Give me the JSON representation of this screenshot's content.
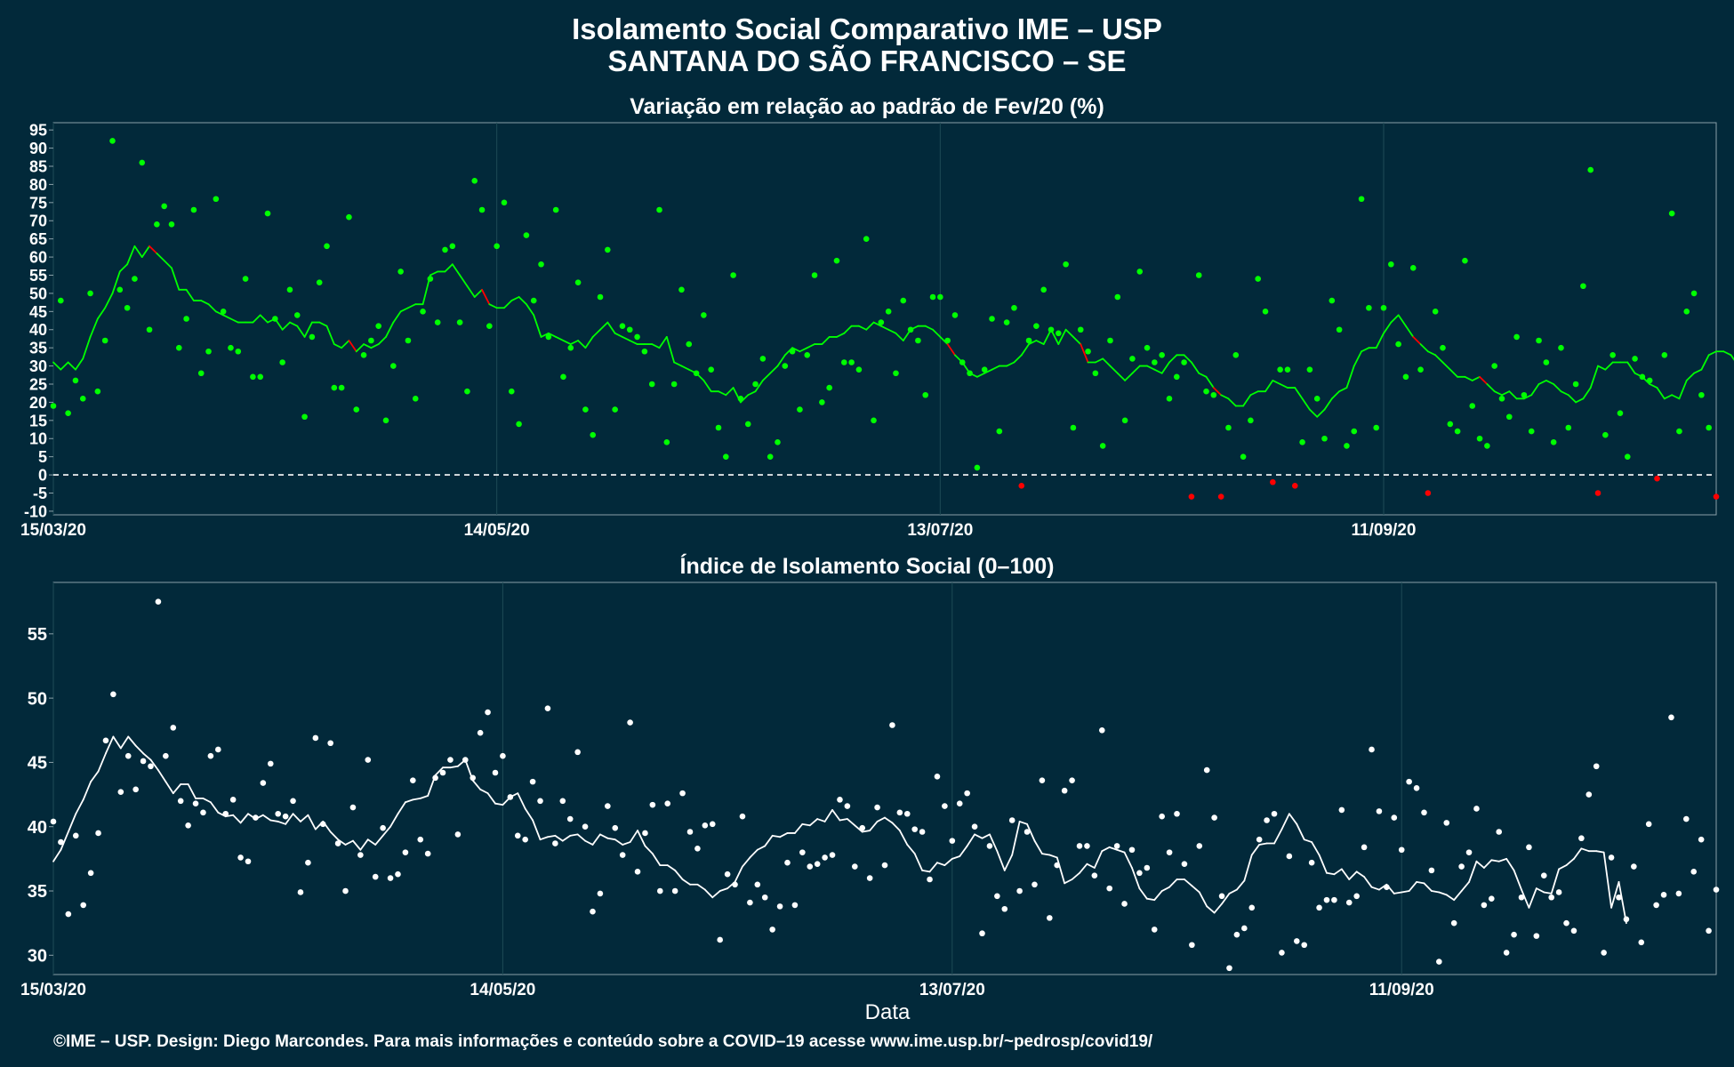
{
  "title_line1": "Isolamento Social Comparativo IME – USP",
  "title_line2": "SANTANA DO SÃO FRANCISCO – SE",
  "footer": "©IME – USP. Design: Diego Marcondes. Para mais informações e conteúdo sobre a COVID–19 acesse www.ime.usp.br/~pedrosp/covid19/",
  "xlabel": "Data",
  "colors": {
    "background": "#02293a",
    "positive": "#00ff00",
    "negative": "#ff0000",
    "index": "#ffffff",
    "grid": "#1d4a55"
  },
  "chart_data": [
    {
      "type": "scatter",
      "title": "Variação em relação ao padrão de Fev/20 (%)",
      "xlabel": "",
      "ylabel": "",
      "x_range": [
        "15/03/20",
        "24/10/20"
      ],
      "ylim": [
        -11,
        97
      ],
      "yticks": [
        -10,
        -5,
        0,
        5,
        10,
        15,
        20,
        25,
        30,
        35,
        40,
        45,
        50,
        55,
        60,
        65,
        70,
        75,
        80,
        85,
        90,
        95
      ],
      "xticks": [
        "15/03/20",
        "14/05/20",
        "13/07/20",
        "11/09/20"
      ],
      "reference_line": 0,
      "series": [
        {
          "values": [
            19,
            48,
            17,
            26,
            21,
            50,
            23,
            37,
            92,
            51,
            46,
            54,
            86,
            40,
            69,
            74,
            69,
            35,
            43,
            73,
            28,
            34,
            76,
            45,
            35,
            34,
            54,
            27,
            27,
            72,
            43,
            31,
            51,
            44,
            16,
            38,
            53,
            63,
            24,
            24,
            71,
            18,
            33,
            37,
            41,
            15,
            30,
            56,
            37,
            21,
            45,
            54,
            42,
            62,
            63,
            42,
            23,
            81,
            73,
            41,
            63,
            75,
            23,
            14,
            66,
            48,
            58,
            38,
            73,
            27,
            35,
            53,
            18,
            11,
            49,
            62,
            18,
            41,
            40,
            38,
            34,
            25,
            73,
            9,
            25,
            51,
            36,
            28,
            44,
            29,
            13,
            5,
            55,
            21,
            14,
            25,
            32,
            5,
            9,
            30,
            34,
            18,
            33,
            55,
            20,
            24,
            59,
            31,
            31,
            29,
            65,
            15,
            42,
            45,
            28,
            48,
            40,
            37,
            22,
            49,
            49,
            37,
            44,
            31,
            28,
            2,
            29,
            43,
            12,
            42,
            46,
            -3,
            37,
            41,
            51,
            40,
            39,
            58,
            13,
            40,
            34,
            28,
            8,
            37,
            49,
            15,
            32,
            56,
            35,
            31,
            33,
            21,
            27,
            31,
            -6,
            55,
            23,
            22,
            -6,
            13,
            33,
            5,
            15,
            54,
            45,
            -2,
            29,
            29,
            -3,
            9,
            29,
            21,
            10,
            48,
            40,
            8,
            12,
            76,
            46,
            13,
            46,
            58,
            36,
            27,
            57,
            29,
            -5,
            45,
            35,
            14,
            12,
            59,
            19,
            10,
            8,
            30,
            21,
            16,
            38,
            22,
            12,
            37,
            31,
            9,
            35,
            13,
            25,
            52,
            84,
            -5,
            11,
            33,
            17,
            5,
            32,
            27,
            26,
            -1,
            33,
            72,
            12,
            45,
            50,
            22,
            13,
            -6
          ]
        },
        {
          "values": [
            31,
            29,
            31,
            29,
            32,
            38,
            43,
            46,
            50,
            56,
            58,
            63,
            60,
            63,
            61,
            59,
            57,
            51,
            51,
            48,
            48,
            47,
            45,
            44,
            43,
            42,
            42,
            42,
            44,
            42,
            43,
            40,
            42,
            41,
            38,
            42,
            42,
            41,
            36,
            35,
            37,
            34,
            36,
            35,
            36,
            38,
            42,
            45,
            46,
            47,
            47,
            55,
            56,
            56,
            58,
            55,
            52,
            49,
            51,
            47,
            46,
            46,
            48,
            49,
            47,
            44,
            38,
            39,
            38,
            37,
            36,
            37,
            35,
            38,
            40,
            42,
            39,
            38,
            37,
            36,
            36,
            36,
            35,
            38,
            31,
            30,
            29,
            28,
            26,
            23,
            23,
            22,
            24,
            20,
            22,
            23,
            26,
            28,
            30,
            33,
            35,
            34,
            35,
            36,
            36,
            38,
            38,
            39,
            41,
            41,
            40,
            42,
            41,
            40,
            39,
            37,
            40,
            41,
            41,
            40,
            38,
            36,
            33,
            31,
            28,
            27,
            28,
            29,
            30,
            30,
            31,
            33,
            36,
            37,
            36,
            40,
            36,
            40,
            38,
            36,
            31,
            31,
            32,
            30,
            28,
            26,
            28,
            30,
            30,
            29,
            28,
            31,
            33,
            33,
            31,
            28,
            27,
            24,
            22,
            21,
            19,
            19,
            22,
            23,
            23,
            26,
            25,
            24,
            24,
            21,
            18,
            16,
            18,
            21,
            23,
            24,
            30,
            34,
            35,
            35,
            39,
            42,
            44,
            41,
            38,
            36,
            34,
            33,
            31,
            29,
            27,
            27,
            26,
            27,
            25,
            23,
            22,
            23,
            21,
            21,
            22,
            25,
            26,
            25,
            23,
            22,
            20,
            21,
            24,
            30,
            29,
            31,
            31,
            31,
            28,
            27,
            25,
            24,
            21,
            22,
            21,
            26,
            28,
            29,
            33,
            34,
            34,
            33,
            30
          ]
        }
      ]
    },
    {
      "type": "scatter",
      "title": "Índice de Isolamento Social (0–100)",
      "xlabel": "Data",
      "ylabel": "",
      "x_range": [
        "15/03/20",
        "24/10/20"
      ],
      "ylim": [
        28.5,
        59
      ],
      "yticks": [
        30,
        35,
        40,
        45,
        50,
        55
      ],
      "xticks": [
        "15/03/20",
        "14/05/20",
        "13/07/20",
        "11/09/20"
      ],
      "series": [
        {
          "values": [
            40.4,
            38.8,
            33.2,
            39.3,
            33.9,
            36.4,
            39.5,
            46.7,
            50.3,
            42.7,
            45.5,
            42.9,
            45.1,
            44.7,
            57.5,
            45.5,
            47.7,
            42.0,
            40.1,
            41.8,
            41.1,
            45.5,
            46.0,
            41.0,
            42.1,
            37.6,
            37.3,
            40.7,
            43.4,
            44.9,
            41.0,
            40.8,
            42.0,
            34.9,
            37.2,
            46.9,
            40.2,
            46.5,
            38.7,
            35.0,
            41.5,
            37.8,
            45.2,
            36.1,
            39.9,
            36.0,
            36.3,
            38.0,
            43.6,
            39.0,
            37.9,
            43.8,
            44.2,
            45.2,
            39.4,
            45.2,
            43.8,
            47.3,
            48.9,
            44.2,
            45.5,
            42.3,
            39.3,
            39.0,
            43.5,
            42.0,
            49.2,
            38.7,
            42.0,
            40.6,
            45.8,
            40.0,
            33.4,
            34.8,
            41.6,
            39.9,
            37.8,
            48.1,
            36.5,
            39.5,
            41.7,
            35.0,
            41.8,
            35.0,
            42.6,
            39.6,
            38.3,
            40.1,
            40.2,
            31.2,
            36.3,
            35.5,
            40.8,
            34.1,
            35.5,
            34.5,
            32.0,
            33.8,
            37.2,
            33.9,
            38.0,
            36.9,
            37.1,
            37.6,
            37.8,
            42.1,
            41.6,
            36.9,
            39.9,
            36.0,
            41.5,
            37.0,
            47.9,
            41.1,
            41.0,
            39.8,
            39.6,
            35.9,
            43.9,
            41.6,
            38.9,
            41.8,
            42.6,
            40.0,
            31.7,
            38.5,
            34.6,
            33.6,
            40.5,
            35.0,
            39.6,
            35.5,
            43.6,
            32.9,
            37.0,
            42.8,
            43.6,
            38.5,
            38.5,
            36.2,
            47.5,
            35.2,
            38.5,
            34.0,
            38.2,
            36.4,
            36.8,
            32.0,
            40.8,
            38.0,
            41.0,
            37.1,
            30.8,
            38.5,
            44.4,
            40.7,
            34.6,
            29.0,
            31.6,
            32.1,
            33.7,
            39.0,
            40.5,
            41.0,
            30.2,
            37.7,
            31.1,
            30.8,
            37.2,
            33.7,
            34.3,
            34.3,
            41.3,
            34.1,
            34.6,
            38.4,
            46.0,
            41.2,
            35.3,
            40.7,
            38.2,
            43.5,
            43.0,
            41.1,
            36.6,
            29.5,
            40.3,
            32.5,
            36.9,
            38.0,
            41.4,
            33.9,
            34.4,
            39.6,
            30.2,
            31.6,
            34.5,
            38.4,
            31.5,
            36.2,
            34.5,
            34.9,
            32.5,
            31.9,
            39.1,
            42.5,
            44.7,
            30.2,
            37.6,
            34.5,
            32.8,
            36.9,
            31.0,
            40.2,
            33.9,
            34.7,
            48.5,
            34.8,
            40.6,
            36.5,
            39.0,
            31.9,
            35.1
          ]
        },
        {
          "values": [
            37.3,
            38.2,
            39.6,
            41.0,
            42.1,
            43.5,
            44.3,
            45.7,
            47.0,
            46.1,
            47.0,
            46.3,
            45.7,
            45.2,
            44.4,
            43.5,
            42.6,
            43.3,
            43.3,
            42.2,
            42.2,
            41.9,
            41.1,
            40.8,
            40.9,
            40.3,
            41.0,
            40.6,
            40.9,
            40.5,
            40.4,
            40.2,
            41.0,
            40.4,
            40.9,
            39.8,
            40.4,
            39.6,
            39.0,
            38.6,
            38.9,
            38.2,
            39.0,
            38.6,
            39.3,
            40.0,
            41.0,
            41.9,
            42.1,
            42.2,
            42.4,
            44.0,
            44.6,
            44.6,
            44.7,
            45.2,
            43.6,
            42.9,
            42.6,
            41.8,
            41.7,
            42.3,
            42.6,
            41.4,
            40.5,
            39.0,
            39.2,
            39.3,
            38.9,
            39.3,
            39.4,
            38.9,
            38.6,
            39.4,
            39.1,
            39.0,
            38.6,
            38.8,
            39.7,
            38.5,
            37.9,
            37.0,
            37.0,
            36.6,
            35.9,
            35.5,
            35.5,
            35.1,
            34.5,
            35.0,
            35.2,
            35.7,
            36.9,
            37.6,
            38.2,
            38.5,
            39.3,
            39.2,
            39.5,
            39.5,
            40.2,
            40.1,
            40.6,
            40.4,
            41.3,
            40.5,
            40.6,
            40.1,
            39.6,
            39.7,
            40.4,
            40.7,
            40.3,
            39.7,
            38.6,
            37.9,
            36.6,
            36.5,
            37.2,
            37.0,
            37.5,
            37.7,
            38.5,
            39.4,
            39.1,
            39.4,
            38.1,
            36.6,
            37.8,
            40.4,
            40.2,
            38.9,
            37.9,
            37.8,
            37.6,
            35.6,
            35.9,
            36.4,
            37.1,
            36.8,
            38.1,
            38.4,
            38.2,
            38.0,
            36.8,
            35.2,
            34.4,
            34.3,
            35.0,
            35.3,
            35.9,
            35.9,
            35.4,
            34.9,
            33.8,
            33.3,
            34.0,
            34.8,
            35.1,
            35.8,
            37.8,
            38.6,
            38.7,
            38.7,
            39.8,
            41.0,
            40.2,
            39.0,
            38.8,
            37.8,
            36.4,
            36.3,
            36.7,
            35.9,
            36.5,
            36.1,
            35.3,
            35.1,
            35.5,
            34.8,
            34.9,
            35.0,
            35.7,
            35.6,
            35.0,
            34.9,
            34.7,
            34.3,
            35.0,
            35.7,
            37.3,
            36.8,
            37.4,
            37.3,
            37.5,
            36.6,
            35.1,
            33.7,
            35.2,
            34.9,
            34.8,
            36.7,
            37.0,
            37.5,
            38.3,
            38.1,
            38.1,
            38.0,
            33.7,
            35.7,
            32.5
          ]
        }
      ]
    }
  ]
}
